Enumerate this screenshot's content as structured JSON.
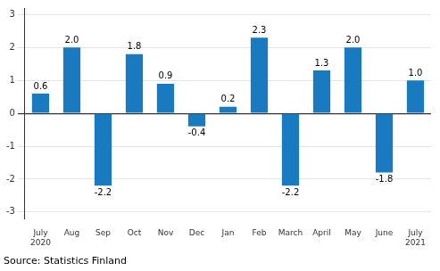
{
  "chart_data": {
    "type": "bar",
    "categories": [
      "July\n2020",
      "Aug",
      "Sep",
      "Oct",
      "Nov",
      "Dec",
      "Jan",
      "Feb",
      "March",
      "April",
      "May",
      "June",
      "July\n2021"
    ],
    "values": [
      0.6,
      2.0,
      -2.2,
      1.8,
      0.9,
      -0.4,
      0.2,
      2.3,
      -2.2,
      1.3,
      2.0,
      -1.8,
      1.0
    ],
    "value_labels": [
      "0.6",
      "2.0",
      "-2.2",
      "1.8",
      "0.9",
      "-0.4",
      "0.2",
      "2.3",
      "-2.2",
      "1.3",
      "2.0",
      "-1.8",
      "1.0"
    ],
    "color": "#1a7abf",
    "ylim": [
      -3.2,
      3.2
    ],
    "yticks": [
      -3,
      -2,
      -1,
      0,
      1,
      2,
      3
    ],
    "grid": true,
    "data_labels": true,
    "annotations": [
      "Source: Statistics Finland"
    ]
  }
}
